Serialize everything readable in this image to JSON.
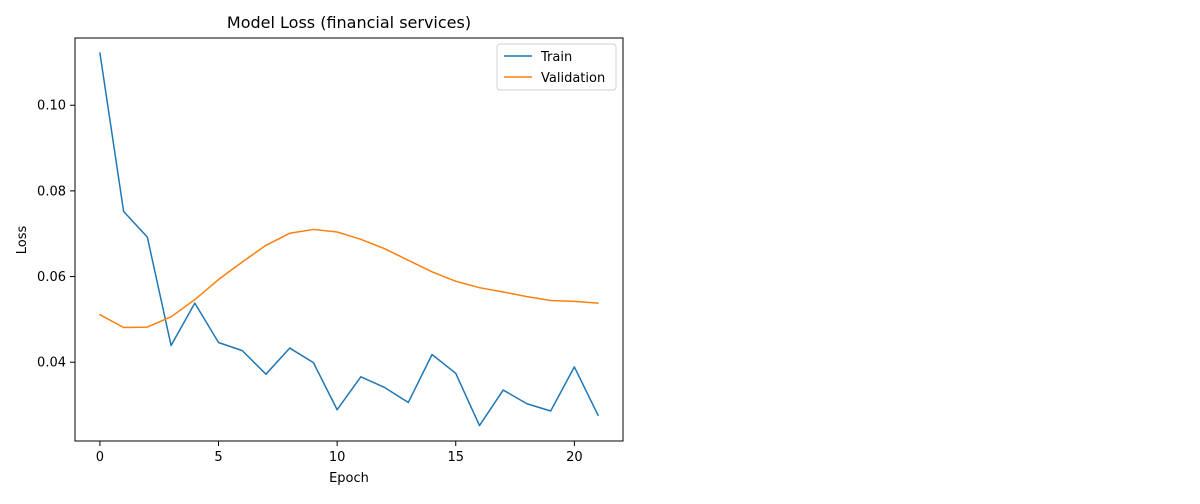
{
  "chart_data": {
    "type": "line",
    "title": "Model Loss (financial services)",
    "xlabel": "Epoch",
    "ylabel": "Loss",
    "xlim": [
      -1.05,
      22.05
    ],
    "ylim": [
      0.0216,
      0.1157
    ],
    "x_ticks": [
      0,
      5,
      10,
      15,
      20
    ],
    "x_tick_labels": [
      "0",
      "5",
      "10",
      "15",
      "20"
    ],
    "y_ticks": [
      0.04,
      0.06,
      0.08,
      0.1
    ],
    "y_tick_labels": [
      "0.04",
      "0.06",
      "0.08",
      "0.10"
    ],
    "grid": false,
    "legend_position": "top-right",
    "x": [
      0,
      1,
      2,
      3,
      4,
      5,
      6,
      7,
      8,
      9,
      10,
      11,
      12,
      13,
      14,
      15,
      16,
      17,
      18,
      19,
      20,
      21
    ],
    "series": [
      {
        "name": "Train",
        "color": "#1f77b4",
        "values": [
          0.1122,
          0.0752,
          0.0692,
          0.0439,
          0.0538,
          0.0446,
          0.0427,
          0.0372,
          0.0433,
          0.0399,
          0.0289,
          0.0366,
          0.0341,
          0.0306,
          0.0418,
          0.0374,
          0.0252,
          0.0335,
          0.0303,
          0.0286,
          0.0389,
          0.0276
        ]
      },
      {
        "name": "Validation",
        "color": "#ff7f0e",
        "values": [
          0.0511,
          0.0481,
          0.0482,
          0.0506,
          0.0546,
          0.0593,
          0.0634,
          0.0673,
          0.0701,
          0.071,
          0.0704,
          0.0687,
          0.0665,
          0.0638,
          0.0611,
          0.0589,
          0.0574,
          0.0564,
          0.0553,
          0.0544,
          0.0542,
          0.0538
        ]
      }
    ]
  }
}
